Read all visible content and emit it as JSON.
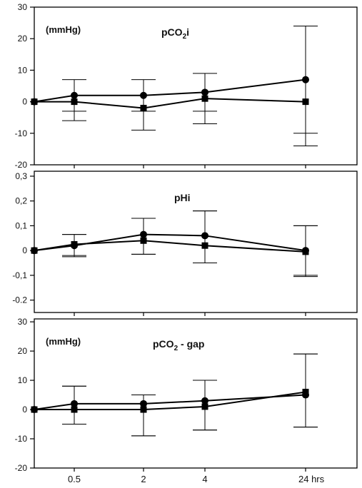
{
  "chart_data": [
    {
      "type": "line",
      "title": "pCO2i",
      "title_main": "pCO",
      "title_sub": "2",
      "title_tail": "i",
      "unit_label": "(mmHg)",
      "ylim": [
        -20,
        30
      ],
      "yticks": [
        "30",
        "20",
        "10",
        "0",
        "-10",
        "-20"
      ],
      "ytick_values": [
        30,
        20,
        10,
        0,
        -10,
        -20
      ],
      "x": [
        0,
        0.5,
        2,
        4,
        24
      ],
      "series": [
        {
          "marker": "circle",
          "values": [
            0,
            2,
            2,
            3,
            7
          ],
          "err_upper": [
            0,
            7,
            7,
            9,
            24
          ],
          "err_lower": [
            0,
            -3,
            -3,
            -3,
            -10
          ]
        },
        {
          "marker": "square",
          "values": [
            0,
            0,
            -2,
            1,
            0
          ],
          "err_upper": [
            0,
            0,
            0,
            0,
            0
          ],
          "err_lower": [
            0,
            -6,
            -9,
            -7,
            -14
          ]
        }
      ]
    },
    {
      "type": "line",
      "title": "pHi",
      "title_main": "pHi",
      "title_sub": "",
      "title_tail": "",
      "unit_label": "",
      "ylim": [
        -0.25,
        0.32
      ],
      "yticks": [
        "0,3",
        "0,2",
        "0,1",
        "0",
        "-0,1",
        "-0.2"
      ],
      "ytick_values": [
        0.3,
        0.2,
        0.1,
        0,
        -0.1,
        -0.2
      ],
      "x": [
        0,
        0.5,
        2,
        4,
        24
      ],
      "series": [
        {
          "marker": "circle",
          "values": [
            0,
            0.02,
            0.065,
            0.06,
            0
          ],
          "err_upper": [
            0,
            0.065,
            0.13,
            0.16,
            0.1
          ],
          "err_lower": [
            0,
            -0.02,
            -0.015,
            -0.05,
            -0.1
          ]
        },
        {
          "marker": "square",
          "values": [
            0,
            0.025,
            0.04,
            0.02,
            -0.005
          ],
          "err_upper": [
            0,
            0.065,
            0.13,
            0.16,
            0.1
          ],
          "err_lower": [
            0,
            -0.025,
            -0.015,
            -0.05,
            -0.105
          ]
        }
      ]
    },
    {
      "type": "line",
      "title": "pCO2 - gap",
      "title_main": "pCO",
      "title_sub": "2",
      "title_tail": " - gap",
      "unit_label": "(mmHg)",
      "ylim": [
        -20,
        31
      ],
      "yticks": [
        "30",
        "20",
        "10",
        "0",
        "-10",
        "-20"
      ],
      "ytick_values": [
        30,
        20,
        10,
        0,
        -10,
        -20
      ],
      "x": [
        0,
        0.5,
        2,
        4,
        24
      ],
      "xticks": [
        "0.5",
        "2",
        "4",
        "24 hrs"
      ],
      "series": [
        {
          "marker": "circle",
          "values": [
            0,
            2,
            2,
            3,
            5
          ],
          "err_upper": [
            0,
            8,
            5,
            10,
            19
          ],
          "err_lower": [
            0,
            -5,
            -9,
            -7,
            -6
          ]
        },
        {
          "marker": "square",
          "values": [
            0,
            0,
            0,
            1,
            6
          ],
          "err_upper": [
            0,
            8,
            5,
            10,
            19
          ],
          "err_lower": [
            0,
            -5,
            -9,
            -7,
            -6
          ]
        }
      ]
    }
  ]
}
